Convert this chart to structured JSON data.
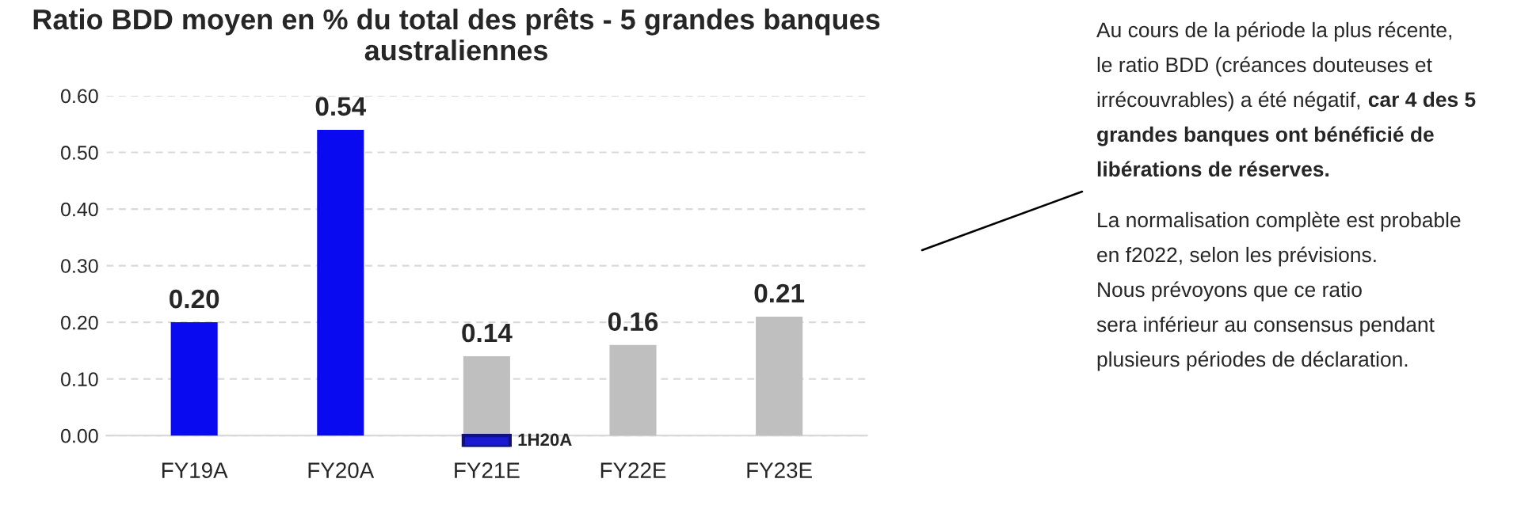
{
  "chart_data": {
    "type": "bar",
    "title": "Ratio BDD moyen en % du total des prêts - 5 grandes banques australiennes",
    "categories": [
      "FY19A",
      "FY20A",
      "FY21E",
      "FY22E",
      "FY23E"
    ],
    "series": [
      {
        "color": "#0a0af0",
        "values": [
          0.2,
          0.54,
          null,
          null,
          null
        ],
        "value_labels": [
          "0.20",
          "0.54",
          null,
          null,
          null
        ]
      },
      {
        "color": "#bfbfbf",
        "values": [
          null,
          null,
          0.14,
          0.16,
          0.21
        ],
        "value_labels": [
          null,
          null,
          "0.14",
          "0.16",
          "0.21"
        ]
      },
      {
        "name": "1H20A",
        "color": "#1a1ad0",
        "values": [
          null,
          null,
          -0.02,
          null,
          null
        ]
      }
    ],
    "ylim": [
      -0.02,
      0.6
    ],
    "yticks": [
      {
        "value": 0,
        "label": "0.00"
      },
      {
        "value": 0.1,
        "label": "0.10"
      },
      {
        "value": 0.2,
        "label": "0.20"
      },
      {
        "value": 0.3,
        "label": "0.30"
      },
      {
        "value": 0.4,
        "label": "0.40"
      },
      {
        "value": 0.5,
        "label": "0.50"
      },
      {
        "value": 0.6,
        "label": "0.60"
      }
    ],
    "grid": "y",
    "annotations": [
      "Au cours de la période la plus récente,\nle ratio BDD (créances douteuses et\nirrécouvrables) a été négatif,",
      "car 4 des 5\ngrandes banques ont bénéficié de\nlibérations de réserves.",
      "La normalisation complète est probable\nen f2022, selon les prévisions.\nNous prévoyons que ce ratio\nsera inférieur au consensus pendant\nplusieurs périodes de déclaration."
    ]
  }
}
